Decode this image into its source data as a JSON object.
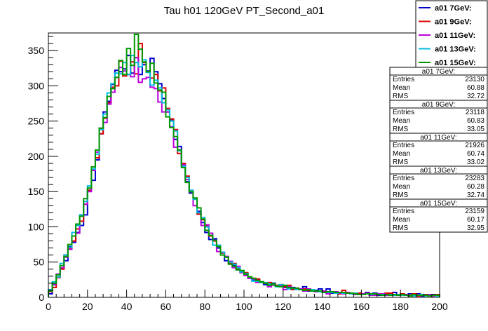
{
  "chart_data": {
    "type": "histogram-step",
    "title": "Tau h01 120GeV PT_Second_a01",
    "xlabel": "",
    "ylabel": "",
    "xlim": [
      0,
      200
    ],
    "ylim": [
      0,
      375
    ],
    "xticks": [
      0,
      20,
      40,
      60,
      80,
      100,
      120,
      140,
      160,
      180,
      200
    ],
    "yticks": [
      0,
      50,
      100,
      150,
      200,
      250,
      300,
      350
    ],
    "bin_width": 2,
    "grid": false,
    "legend_position": "top-right",
    "series": [
      {
        "name": "a01 7GeV:",
        "color": "#0000cc",
        "values": [
          5,
          18,
          29,
          41,
          52,
          72,
          78,
          92,
          102,
          117,
          152,
          166,
          195,
          232,
          263,
          278,
          302,
          322,
          320,
          324,
          343,
          318,
          340,
          316,
          330,
          321,
          339,
          320,
          303,
          282,
          263,
          252,
          224,
          214,
          186,
          164,
          148,
          140,
          122,
          106,
          92,
          82,
          83,
          70,
          63,
          52,
          51,
          45,
          39,
          35,
          33,
          27,
          25,
          25,
          22,
          18,
          18,
          20,
          17,
          16,
          14,
          13,
          14,
          12,
          12,
          15,
          9,
          11,
          10,
          12,
          8,
          12,
          6,
          8,
          7,
          5,
          7,
          5,
          5,
          6,
          5,
          7,
          4,
          6,
          3,
          5,
          5,
          3,
          7,
          3,
          4,
          3,
          5,
          3,
          5,
          2,
          3,
          3,
          4,
          3
        ],
        "stats": {
          "title": "a01 7GeV:",
          "entries": "23130",
          "mean": "60.88",
          "rms": "32.72"
        }
      },
      {
        "name": "a01 9GeV:",
        "color": "#dd0000",
        "values": [
          8,
          14,
          28,
          40,
          60,
          70,
          80,
          97,
          108,
          132,
          152,
          180,
          198,
          232,
          254,
          276,
          298,
          300,
          335,
          314,
          316,
          334,
          317,
          360,
          333,
          320,
          311,
          316,
          293,
          297,
          268,
          253,
          238,
          204,
          190,
          172,
          150,
          140,
          118,
          110,
          102,
          87,
          80,
          72,
          63,
          58,
          48,
          48,
          41,
          37,
          35,
          28,
          27,
          26,
          22,
          20,
          21,
          17,
          17,
          18,
          15,
          17,
          11,
          13,
          11,
          12,
          10,
          10,
          9,
          9,
          9,
          8,
          8,
          7,
          5,
          10,
          6,
          5,
          6,
          6,
          5,
          6,
          3,
          5,
          4,
          4,
          6,
          6,
          3,
          3,
          5,
          3,
          4,
          5,
          2,
          3,
          4,
          2,
          3,
          4
        ],
        "stats": {
          "title": "a01 9GeV:",
          "entries": "23118",
          "mean": "60.83",
          "rms": "33.05"
        }
      },
      {
        "name": "a01 11GeV:",
        "color": "#bb00dd",
        "values": [
          10,
          19,
          33,
          42,
          57,
          68,
          87,
          91,
          116,
          132,
          150,
          180,
          206,
          240,
          248,
          274,
          291,
          312,
          326,
          321,
          316,
          313,
          340,
          305,
          310,
          312,
          298,
          296,
          277,
          263,
          263,
          242,
          213,
          208,
          188,
          167,
          151,
          130,
          120,
          102,
          103,
          91,
          81,
          65,
          64,
          58,
          51,
          42,
          44,
          35,
          31,
          27,
          26,
          21,
          21,
          20,
          15,
          18,
          16,
          16,
          11,
          15,
          13,
          12,
          12,
          9,
          12,
          10,
          8,
          8,
          9,
          5,
          7,
          8,
          6,
          5,
          7,
          6,
          4,
          4,
          5,
          6,
          3,
          3,
          5,
          5,
          3,
          3,
          4,
          3,
          4,
          4,
          3,
          2,
          4,
          3,
          2,
          4,
          2,
          2
        ],
        "stats": {
          "title": "a01 11GeV:",
          "entries": "21926",
          "mean": "60.74",
          "rms": "33.02"
        }
      },
      {
        "name": "a01 13GeV:",
        "color": "#00bbdd",
        "values": [
          11,
          22,
          29,
          48,
          60,
          71,
          92,
          102,
          117,
          136,
          158,
          182,
          203,
          238,
          260,
          290,
          303,
          318,
          317,
          333,
          316,
          343,
          333,
          327,
          337,
          319,
          301,
          308,
          297,
          276,
          266,
          250,
          236,
          208,
          186,
          170,
          152,
          139,
          120,
          113,
          100,
          88,
          74,
          74,
          64,
          57,
          50,
          47,
          42,
          36,
          34,
          29,
          23,
          23,
          21,
          21,
          19,
          18,
          15,
          18,
          17,
          12,
          13,
          11,
          11,
          10,
          11,
          11,
          9,
          8,
          7,
          7,
          7,
          6,
          7,
          6,
          6,
          5,
          6,
          4,
          4,
          5,
          4,
          5,
          4,
          4,
          4,
          4,
          3,
          4,
          3,
          3,
          3,
          2,
          3,
          4,
          2,
          2,
          3,
          2
        ],
        "stats": {
          "title": "a01 13GeV:",
          "entries": "23283",
          "mean": "60.28",
          "rms": "32.74"
        }
      },
      {
        "name": "a01 15GeV:",
        "color": "#009900",
        "values": [
          9,
          20,
          32,
          45,
          58,
          75,
          87,
          104,
          115,
          140,
          155,
          185,
          209,
          240,
          255,
          285,
          296,
          312,
          336,
          316,
          353,
          329,
          373,
          352,
          334,
          320,
          332,
          304,
          294,
          291,
          256,
          241,
          228,
          209,
          184,
          163,
          150,
          141,
          127,
          111,
          95,
          88,
          81,
          72,
          60,
          57,
          47,
          44,
          39,
          38,
          33,
          29,
          27,
          24,
          22,
          20,
          17,
          19,
          16,
          15,
          17,
          14,
          13,
          13,
          11,
          10,
          11,
          9,
          9,
          9,
          7,
          8,
          8,
          7,
          7,
          7,
          6,
          6,
          5,
          4,
          4,
          5,
          5,
          5,
          4,
          3,
          4,
          3,
          4,
          3,
          4,
          3,
          2,
          4,
          3,
          3,
          3,
          2,
          3,
          3
        ],
        "stats": {
          "title": "a01 15GeV:",
          "entries": "23159",
          "mean": "60.17",
          "rms": "32.95"
        }
      }
    ]
  },
  "stats_labels": {
    "entries": "Entries",
    "mean": "Mean",
    "rms": "RMS"
  }
}
